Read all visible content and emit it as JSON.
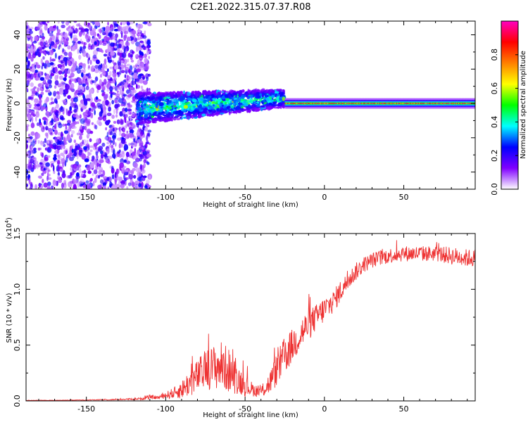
{
  "figure": {
    "title": "C2E1.2022.315.07.37.R08"
  },
  "chart_data": [
    {
      "type": "heatmap",
      "title": "C2E1.2022.315.07.37.R08",
      "xlabel": "Height of straight line (km)",
      "ylabel": "Frequency (Hz)",
      "xlim": [
        -188,
        95
      ],
      "ylim": [
        -50,
        48
      ],
      "xticks": [
        -150,
        -100,
        -50,
        0,
        50
      ],
      "xtick_labels": [
        "-150",
        "-100",
        "-50",
        "0",
        "50"
      ],
      "yticks": [
        40,
        20,
        0,
        -20,
        -40
      ],
      "ytick_labels": [
        "40",
        "20",
        "0",
        "-20",
        "-40"
      ],
      "description_regions": [
        {
          "x_range": [
            -188,
            -110
          ],
          "freq_range": [
            -50,
            48
          ],
          "amplitude": 0.2,
          "pattern": "scattered noise"
        },
        {
          "x_range": [
            -118,
            -25
          ],
          "freq_range": [
            -10,
            8
          ],
          "amplitude": 0.35,
          "pattern": "broadening echo band"
        },
        {
          "x_range": [
            -25,
            95
          ],
          "freq_range": [
            -2,
            2
          ],
          "amplitude": 0.7,
          "pattern": "narrow line centered at 0 Hz"
        }
      ],
      "colorbar": {
        "label": "Normalized spectral amplitude",
        "range": [
          0.0,
          1.0
        ],
        "ticks": [
          0.0,
          0.2,
          0.4,
          0.6,
          0.8
        ],
        "tick_labels": [
          "0.0",
          "0.2",
          "0.4",
          "0.6",
          "0.8"
        ],
        "colors": [
          "#ffffff",
          "#8000ff",
          "#0000ff",
          "#00ffff",
          "#00ff00",
          "#ffff00",
          "#ff8000",
          "#ff0000",
          "#ff00c0"
        ]
      }
    },
    {
      "type": "line",
      "title": "",
      "xlabel": "Height of straight line (km)",
      "ylabel": "SNR (10 * v/v)",
      "y_multiplier_label": "(x10",
      "y_multiplier_exp": "4",
      "xlim": [
        -188,
        95
      ],
      "ylim": [
        0,
        1.5
      ],
      "xticks": [
        -150,
        -100,
        -50,
        0,
        50
      ],
      "xtick_labels": [
        "-150",
        "-100",
        "-50",
        "0",
        "50"
      ],
      "yticks": [
        0.0,
        0.5,
        1.0,
        1.5
      ],
      "ytick_labels": [
        "0.0",
        "0.5",
        "1.0",
        "1.5"
      ],
      "color": "#ee3333",
      "series": [
        {
          "name": "SNR",
          "x": [
            -188,
            -170,
            -150,
            -130,
            -115,
            -110,
            -105,
            -100,
            -95,
            -90,
            -85,
            -80,
            -75,
            -70,
            -65,
            -60,
            -55,
            -50,
            -45,
            -40,
            -35,
            -30,
            -25,
            -20,
            -15,
            -10,
            -5,
            0,
            5,
            10,
            15,
            20,
            25,
            30,
            40,
            50,
            60,
            70,
            80,
            90,
            95
          ],
          "y": [
            0.005,
            0.005,
            0.008,
            0.012,
            0.02,
            0.035,
            0.03,
            0.05,
            0.07,
            0.1,
            0.16,
            0.22,
            0.28,
            0.3,
            0.32,
            0.27,
            0.2,
            0.14,
            0.1,
            0.08,
            0.15,
            0.28,
            0.4,
            0.5,
            0.6,
            0.68,
            0.75,
            0.82,
            0.88,
            0.98,
            1.08,
            1.16,
            1.22,
            1.26,
            1.3,
            1.32,
            1.32,
            1.32,
            1.3,
            1.28,
            1.28
          ],
          "noise": [
            0.002,
            0.002,
            0.003,
            0.005,
            0.01,
            0.02,
            0.015,
            0.03,
            0.05,
            0.08,
            0.12,
            0.15,
            0.18,
            0.2,
            0.22,
            0.2,
            0.14,
            0.1,
            0.06,
            0.05,
            0.1,
            0.15,
            0.18,
            0.15,
            0.16,
            0.14,
            0.12,
            0.12,
            0.1,
            0.1,
            0.08,
            0.08,
            0.07,
            0.07,
            0.07,
            0.07,
            0.07,
            0.07,
            0.08,
            0.08,
            0.08
          ]
        }
      ]
    }
  ]
}
